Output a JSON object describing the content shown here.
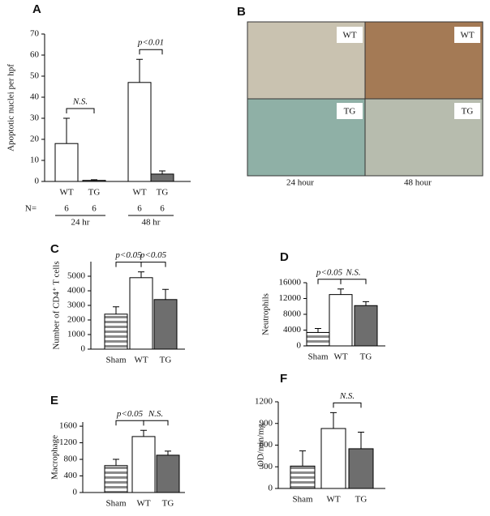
{
  "chart_data": [
    {
      "type": "bar",
      "panel": "A",
      "ylabel": "Apoptotic nuclei per hpf",
      "categories": [
        "WT",
        "TG",
        "WT",
        "TG"
      ],
      "values": [
        18,
        0.5,
        47,
        3.5
      ],
      "errors": [
        12,
        0.3,
        11,
        1.5
      ],
      "colors": [
        "#ffffff",
        "#6e6e6e",
        "#ffffff",
        "#6e6e6e"
      ],
      "hatch": [
        false,
        false,
        false,
        false
      ],
      "ylim": [
        0,
        70
      ],
      "yticks": [
        0,
        10,
        20,
        30,
        40,
        50,
        60,
        70
      ],
      "brackets": [
        {
          "label": "N.S.",
          "between": [
            0,
            1
          ]
        },
        {
          "label": "p<0.01",
          "between": [
            2,
            3
          ]
        }
      ],
      "n_label": "N=",
      "n": [
        6,
        6,
        6,
        6
      ],
      "groups": [
        "24 hr",
        "48 hr"
      ]
    },
    {
      "type": "bar",
      "panel": "C",
      "ylabel": "Number of CD4⁺ T cells",
      "categories": [
        "Sham",
        "WT",
        "TG"
      ],
      "values": [
        2400,
        4900,
        3400
      ],
      "errors": [
        500,
        400,
        700
      ],
      "colors": [
        "#8a8a8a",
        "#ffffff",
        "#6e6e6e"
      ],
      "hatch": [
        true,
        false,
        false
      ],
      "ylim": [
        0,
        6000
      ],
      "yticks": [
        0,
        1000,
        2000,
        3000,
        4000,
        5000
      ],
      "brackets": [
        {
          "label": "p<0.05",
          "between": [
            0,
            1
          ]
        },
        {
          "label": "p<0.05",
          "between": [
            1,
            2
          ]
        }
      ]
    },
    {
      "type": "bar",
      "panel": "D",
      "ylabel": "Neutrophils",
      "categories": [
        "Sham",
        "WT",
        "TG"
      ],
      "values": [
        3400,
        13000,
        10200
      ],
      "errors": [
        1000,
        1400,
        1000
      ],
      "colors": [
        "#8a8a8a",
        "#ffffff",
        "#6e6e6e"
      ],
      "hatch": [
        true,
        false,
        false
      ],
      "ylim": [
        0,
        16000
      ],
      "yticks": [
        0,
        4000,
        8000,
        12000,
        16000
      ],
      "brackets": [
        {
          "label": "p<0.05",
          "between": [
            0,
            1
          ]
        },
        {
          "label": "N.S.",
          "between": [
            1,
            2
          ]
        }
      ]
    },
    {
      "type": "bar",
      "panel": "E",
      "ylabel": "Macrophage",
      "categories": [
        "Sham",
        "WT",
        "TG"
      ],
      "values": [
        650,
        1350,
        900
      ],
      "errors": [
        150,
        150,
        100
      ],
      "colors": [
        "#8a8a8a",
        "#ffffff",
        "#6e6e6e"
      ],
      "hatch": [
        true,
        false,
        false
      ],
      "ylim": [
        0,
        1700
      ],
      "yticks": [
        0,
        400,
        800,
        1200,
        1600
      ],
      "brackets": [
        {
          "label": "p<0.05",
          "between": [
            0,
            1
          ]
        },
        {
          "label": "N.S.",
          "between": [
            1,
            2
          ]
        }
      ]
    },
    {
      "type": "bar",
      "panel": "F",
      "ylabel": "OD/min/mg",
      "categories": [
        "Sham",
        "WT",
        "TG"
      ],
      "values": [
        310,
        830,
        550
      ],
      "errors": [
        210,
        220,
        230
      ],
      "colors": [
        "#8a8a8a",
        "#ffffff",
        "#6e6e6e"
      ],
      "hatch": [
        true,
        false,
        false
      ],
      "ylim": [
        0,
        1200
      ],
      "yticks": [
        0,
        300,
        600,
        900,
        1200
      ],
      "brackets": [
        {
          "label": "N.S.",
          "between": [
            1,
            2
          ]
        }
      ]
    }
  ],
  "micrographs": {
    "panel": "B",
    "images": [
      {
        "label": "WT"
      },
      {
        "label": "WT"
      },
      {
        "label": "TG"
      },
      {
        "label": "TG"
      }
    ],
    "captions": [
      "24 hour",
      "48 hour"
    ]
  }
}
